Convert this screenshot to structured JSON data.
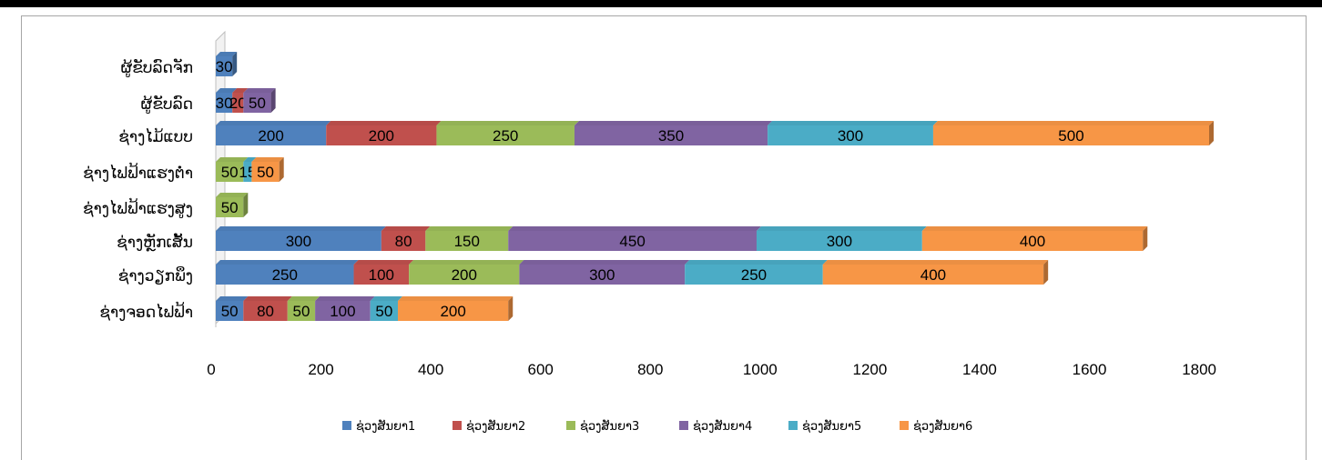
{
  "chart_data": {
    "type": "bar",
    "orientation": "horizontal",
    "stacked": true,
    "three_d": true,
    "categories": [
      "ຊ່າງຈອດໄຟຟ້າ",
      "ຊ່າງວຽກພຶງ",
      "ຊ່າງຫຼັກເສັ້ນ",
      "ຊ່າງໄຟຟ້າແຮງສູງ",
      "ຊ່າງໄຟຟ້າແຮງຕໍ່າ",
      "ຊ່າງໄມ້ແບບ",
      "ຜູ້ຂັບລົດ",
      "ຜູ້ຂັບລົດຈັກ"
    ],
    "series": [
      {
        "name": "ຊ່ວງສັນຍາ1",
        "color": "#4f81bd",
        "values": [
          50,
          250,
          300,
          0,
          0,
          200,
          30,
          30
        ]
      },
      {
        "name": "ຊ່ວງສັນຍາ2",
        "color": "#c0504d",
        "values": [
          80,
          100,
          80,
          0,
          0,
          200,
          20,
          0
        ]
      },
      {
        "name": "ຊ່ວງສັນຍາ3",
        "color": "#9bbb59",
        "values": [
          50,
          200,
          150,
          50,
          50,
          250,
          0,
          0
        ]
      },
      {
        "name": "ຊ່ວງສັນຍາ4",
        "color": "#8064a2",
        "values": [
          100,
          300,
          450,
          0,
          0,
          350,
          50,
          0
        ]
      },
      {
        "name": "ຊ່ວງສັນຍາ5",
        "color": "#4bacc6",
        "values": [
          50,
          250,
          300,
          0,
          15,
          300,
          0,
          0
        ]
      },
      {
        "name": "ຊ່ວງສັນຍາ6",
        "color": "#f79646",
        "values": [
          200,
          400,
          400,
          0,
          50,
          500,
          0,
          0
        ]
      }
    ],
    "xlim": [
      0,
      1800
    ],
    "xticks": [
      "0",
      "200",
      "400",
      "600",
      "800",
      "1000",
      "1200",
      "1400",
      "1600",
      "1800"
    ],
    "grid": false,
    "legend_position": "bottom"
  }
}
